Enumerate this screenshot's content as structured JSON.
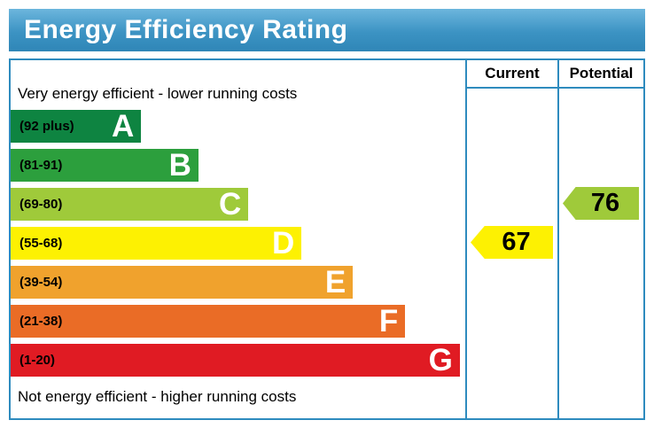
{
  "title": "Energy Efficiency Rating",
  "header": {
    "current": "Current",
    "potential": "Potential"
  },
  "notes": {
    "top": "Very energy efficient - lower running costs",
    "bottom": "Not energy efficient - higher running costs"
  },
  "style": {
    "border_color": "#2e8bbe",
    "banner_gradient_top": "#6cb6dd",
    "banner_gradient_bottom": "#2f86b7",
    "title_text_color": "#ffffff"
  },
  "chart_data": {
    "type": "bar",
    "title": "Energy Efficiency Rating",
    "columns": [
      "Current",
      "Potential"
    ],
    "annotations": [
      "Very energy efficient - lower running costs",
      "Not energy efficient - higher running costs"
    ],
    "bands": [
      {
        "letter": "A",
        "range": "(92 plus)",
        "color": "#0e8441",
        "width_pct": 28.7
      },
      {
        "letter": "B",
        "range": "(81-91)",
        "color": "#2c9f3d",
        "width_pct": 41.3
      },
      {
        "letter": "C",
        "range": "(69-80)",
        "color": "#9fca3a",
        "width_pct": 52.3
      },
      {
        "letter": "D",
        "range": "(55-68)",
        "color": "#fdf102",
        "width_pct": 64.0
      },
      {
        "letter": "E",
        "range": "(39-54)",
        "color": "#f0a22d",
        "width_pct": 75.3
      },
      {
        "letter": "F",
        "range": "(21-38)",
        "color": "#ea6c26",
        "width_pct": 86.8
      },
      {
        "letter": "G",
        "range": "(1-20)",
        "color": "#e01b23",
        "width_pct": 98.8
      }
    ],
    "current": {
      "value": "67",
      "band": "D",
      "band_index": 3,
      "color": "#fdf102"
    },
    "potential": {
      "value": "76",
      "band": "C",
      "band_index": 2,
      "color": "#9fca3a"
    }
  }
}
